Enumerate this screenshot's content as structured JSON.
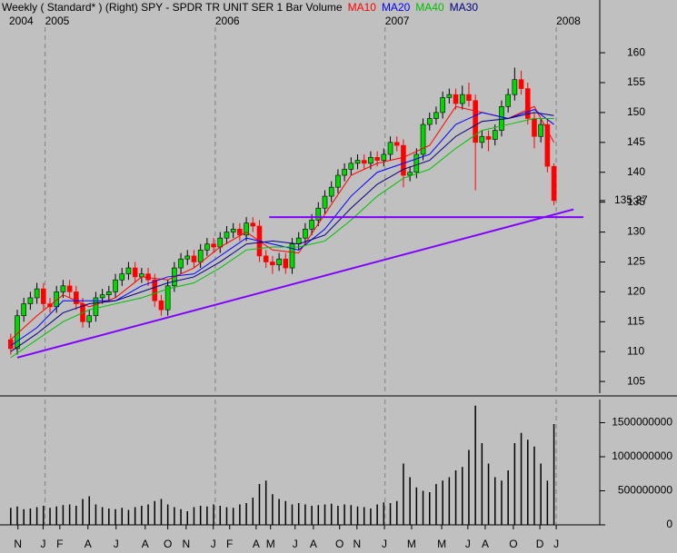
{
  "chart_data": [
    {
      "type": "candlestick",
      "title": "Weekly ( Standard* )  (Right)  SPY - SPDR TR UNIT SER 1  Bar  Volume",
      "x": [
        0,
        2,
        4,
        6,
        8,
        10,
        12,
        14,
        16,
        18,
        20,
        22,
        24,
        26,
        28,
        30,
        32,
        34,
        36,
        38,
        40,
        42,
        44,
        46,
        48,
        50,
        52,
        54,
        56,
        58,
        60,
        62,
        64,
        66,
        68,
        70,
        72,
        74,
        76,
        78,
        80,
        82,
        84,
        86,
        88,
        90,
        92,
        94,
        96,
        98,
        100,
        102,
        104,
        106,
        108,
        110,
        112,
        114,
        116,
        118,
        120,
        122,
        124,
        126,
        128,
        130,
        132,
        134,
        136,
        138,
        140,
        142,
        144,
        146,
        148,
        150,
        152,
        154,
        156,
        158,
        160,
        162,
        164,
        166
      ],
      "open": [
        112,
        110.5,
        116,
        118,
        119,
        120.5,
        118,
        117.5,
        120,
        121,
        120,
        118,
        115,
        116,
        119,
        119.5,
        120,
        122,
        123,
        124,
        122.5,
        123,
        122,
        118.5,
        117,
        121,
        124,
        125.5,
        126,
        125,
        127,
        128,
        127.5,
        129,
        130,
        130.5,
        129.5,
        131.5,
        131,
        126,
        125,
        124.5,
        125.5,
        124,
        128,
        129,
        130.5,
        132,
        134,
        136,
        137.5,
        139.5,
        140.5,
        141.5,
        142,
        141.5,
        142.5,
        142,
        143,
        145,
        144.5,
        139.5,
        140,
        143,
        148,
        149,
        150,
        152.5,
        153,
        151.5,
        153,
        152,
        145,
        146,
        145.5,
        147,
        151,
        153,
        155.5,
        154,
        149,
        146,
        148,
        141
      ],
      "high": [
        113,
        117,
        119,
        120,
        121.5,
        121.5,
        119,
        121,
        122,
        122,
        121,
        119,
        117,
        120,
        120.5,
        121,
        123,
        124,
        125,
        125,
        124,
        124,
        123,
        119.5,
        122,
        125,
        126.5,
        127,
        127,
        128,
        129,
        129,
        130,
        131,
        131.5,
        131.5,
        132.5,
        132.5,
        132,
        127,
        126,
        126.5,
        126.5,
        129,
        130,
        131.5,
        133,
        135,
        137,
        138.5,
        140.5,
        141.5,
        142.5,
        143,
        143,
        143.5,
        143.5,
        144,
        146,
        146,
        145.5,
        141,
        144,
        149,
        150,
        151,
        153.5,
        154,
        154,
        154.5,
        155,
        153,
        147,
        147,
        148,
        152,
        154,
        157.5,
        157,
        155,
        150,
        149,
        149,
        141.5
      ],
      "low": [
        109.5,
        109.5,
        115,
        117,
        118,
        117,
        116.5,
        116.5,
        119,
        119,
        117,
        114,
        114,
        115,
        118,
        118.5,
        119,
        121,
        122,
        121.5,
        121.5,
        121,
        117.5,
        116,
        116,
        120,
        123,
        124.5,
        124,
        124,
        126,
        126.5,
        126.5,
        128,
        129,
        128.5,
        128.5,
        130,
        125,
        124,
        123,
        123.5,
        123,
        123,
        127,
        128,
        129.5,
        131,
        133,
        135,
        136.5,
        138.5,
        139.5,
        140.5,
        140.5,
        140.5,
        141,
        141,
        142,
        143.5,
        137.5,
        138.5,
        139,
        142,
        147,
        148,
        149,
        151.5,
        150.5,
        150.5,
        151,
        137,
        144,
        143.5,
        144.5,
        146,
        150,
        152,
        153,
        148,
        144,
        145,
        140,
        134.5
      ],
      "close": [
        110.5,
        116,
        118,
        119,
        120.5,
        118,
        117.5,
        120,
        121,
        120,
        118,
        115,
        116,
        119,
        119.5,
        120,
        122,
        123,
        124,
        122.5,
        123,
        122,
        118.5,
        117,
        121,
        124,
        125.5,
        126,
        125,
        127,
        128,
        127.5,
        129,
        130,
        130.5,
        129.5,
        131.5,
        131,
        126,
        125,
        124.5,
        125.5,
        124,
        128,
        129,
        130.5,
        132,
        134,
        136,
        137.5,
        139.5,
        140.5,
        141.5,
        142,
        141.5,
        142.5,
        142,
        143,
        145,
        144.5,
        139.5,
        140,
        143,
        148,
        149,
        150,
        152.5,
        153,
        151.5,
        153,
        152,
        145,
        146,
        145.5,
        147,
        151,
        153,
        155.5,
        154,
        149,
        146,
        148,
        141,
        135.27
      ],
      "color_up": "#00d800",
      "color_down": "#ff0000",
      "series": [
        {
          "name": "MA10",
          "color": "#ff0000",
          "x": [
            0,
            8,
            16,
            24,
            32,
            40,
            48,
            56,
            64,
            72,
            80,
            88,
            96,
            104,
            112,
            120,
            128,
            136,
            144,
            152,
            160,
            166
          ],
          "values": [
            112,
            116,
            119.5,
            117.5,
            119,
            122.5,
            122,
            124,
            127.5,
            130,
            127,
            126.5,
            133,
            139.5,
            141.5,
            142.5,
            144.5,
            151,
            150,
            149,
            151,
            145
          ]
        },
        {
          "name": "MA20",
          "color": "#0000ff",
          "x": [
            0,
            8,
            16,
            24,
            32,
            40,
            48,
            56,
            64,
            72,
            80,
            88,
            96,
            104,
            112,
            120,
            128,
            136,
            144,
            152,
            160,
            166
          ],
          "values": [
            111,
            114,
            118.5,
            118.5,
            118.5,
            121,
            122.5,
            123,
            126,
            129,
            128,
            127,
            130.5,
            136,
            140,
            141.5,
            143,
            148,
            150,
            149,
            150.5,
            148
          ]
        },
        {
          "name": "MA40",
          "color": "#00c000",
          "x": [
            0,
            8,
            16,
            24,
            32,
            40,
            48,
            56,
            64,
            72,
            80,
            88,
            96,
            104,
            112,
            120,
            128,
            136,
            144,
            152,
            160,
            166
          ],
          "values": [
            109,
            112,
            115,
            117,
            118,
            119,
            120.5,
            121.5,
            124,
            127,
            127.5,
            127.5,
            128.5,
            132,
            136,
            139,
            140.5,
            144,
            147,
            148,
            149,
            149
          ]
        },
        {
          "name": "MA30",
          "color": "#000080",
          "x": [
            0,
            8,
            16,
            24,
            32,
            40,
            48,
            56,
            64,
            72,
            80,
            88,
            96,
            104,
            112,
            120,
            128,
            136,
            144,
            152,
            160,
            166
          ],
          "values": [
            110,
            113,
            116.5,
            118,
            118.5,
            120,
            121.5,
            122.5,
            125,
            128,
            128.5,
            128,
            129.5,
            134,
            138,
            140.5,
            142,
            146,
            148.5,
            149,
            150,
            149.5
          ]
        }
      ],
      "trend_lines": [
        {
          "color": "#8000ff",
          "x": [
            2,
            172
          ],
          "values": [
            109,
            133.8
          ]
        },
        {
          "color": "#8000ff",
          "x": [
            79,
            175
          ],
          "values": [
            132.5,
            132.5
          ]
        }
      ],
      "last_price": 135.27,
      "xlim": [
        -0.5,
        180
      ],
      "ylim": [
        103.5,
        167
      ],
      "yticks": [
        105,
        110,
        115,
        120,
        125,
        130,
        135,
        140,
        145,
        150,
        155,
        160
      ],
      "year_ticks": [
        {
          "value": -0.5,
          "label": "2004"
        },
        {
          "value": 10.5,
          "label": "2005"
        },
        {
          "value": 62.5,
          "label": "2006"
        },
        {
          "value": 114.4,
          "label": "2007"
        },
        {
          "value": 166.7,
          "label": "2008"
        }
      ]
    },
    {
      "type": "volume",
      "x": [
        0,
        2,
        4,
        6,
        8,
        10,
        12,
        14,
        16,
        18,
        20,
        22,
        24,
        26,
        28,
        30,
        32,
        34,
        36,
        38,
        40,
        42,
        44,
        46,
        48,
        50,
        52,
        54,
        56,
        58,
        60,
        62,
        64,
        66,
        68,
        70,
        72,
        74,
        76,
        78,
        80,
        82,
        84,
        86,
        88,
        90,
        92,
        94,
        96,
        98,
        100,
        102,
        104,
        106,
        108,
        110,
        112,
        114,
        116,
        118,
        120,
        122,
        124,
        126,
        128,
        130,
        132,
        134,
        136,
        138,
        140,
        142,
        144,
        146,
        148,
        150,
        152,
        154,
        156,
        158,
        160,
        162,
        164,
        166
      ],
      "values": [
        250000000,
        270000000,
        230000000,
        240000000,
        260000000,
        280000000,
        250000000,
        270000000,
        290000000,
        300000000,
        280000000,
        380000000,
        420000000,
        300000000,
        260000000,
        240000000,
        230000000,
        250000000,
        220000000,
        260000000,
        280000000,
        300000000,
        350000000,
        380000000,
        300000000,
        260000000,
        230000000,
        200000000,
        260000000,
        280000000,
        270000000,
        300000000,
        280000000,
        260000000,
        250000000,
        300000000,
        320000000,
        400000000,
        600000000,
        650000000,
        450000000,
        380000000,
        350000000,
        300000000,
        320000000,
        300000000,
        280000000,
        290000000,
        300000000,
        310000000,
        280000000,
        300000000,
        290000000,
        270000000,
        260000000,
        240000000,
        300000000,
        330000000,
        320000000,
        350000000,
        900000000,
        700000000,
        550000000,
        500000000,
        480000000,
        600000000,
        650000000,
        700000000,
        800000000,
        850000000,
        1100000000,
        1750000000,
        1200000000,
        900000000,
        700000000,
        650000000,
        800000000,
        1200000000,
        1350000000,
        1250000000,
        1150000000,
        900000000,
        650000000,
        1480000000
      ],
      "color": "#000000",
      "xlim": [
        -0.5,
        180
      ],
      "ylim": [
        0,
        1800000000
      ],
      "yticks": [
        0,
        500000000,
        1000000000,
        1500000000
      ],
      "xticks": [
        {
          "value": 2.2,
          "label": "N"
        },
        {
          "value": 9.9,
          "label": "J"
        },
        {
          "value": 15,
          "label": "F"
        },
        {
          "value": 23.6,
          "label": "A"
        },
        {
          "value": 32.2,
          "label": "J"
        },
        {
          "value": 41.1,
          "label": "A"
        },
        {
          "value": 48,
          "label": "O"
        },
        {
          "value": 53.6,
          "label": "N"
        },
        {
          "value": 61.9,
          "label": "J"
        },
        {
          "value": 66.9,
          "label": "F"
        },
        {
          "value": 75,
          "label": "A"
        },
        {
          "value": 79.4,
          "label": "M"
        },
        {
          "value": 86.9,
          "label": "J"
        },
        {
          "value": 92.5,
          "label": "A"
        },
        {
          "value": 100.5,
          "label": "O"
        },
        {
          "value": 105.8,
          "label": "N"
        },
        {
          "value": 114.2,
          "label": "J"
        },
        {
          "value": 122.5,
          "label": "M"
        },
        {
          "value": 131.7,
          "label": "M"
        },
        {
          "value": 139.7,
          "label": "J"
        },
        {
          "value": 145,
          "label": "A"
        },
        {
          "value": 153.6,
          "label": "O"
        },
        {
          "value": 161.7,
          "label": "D"
        },
        {
          "value": 166.7,
          "label": "J"
        }
      ]
    }
  ]
}
